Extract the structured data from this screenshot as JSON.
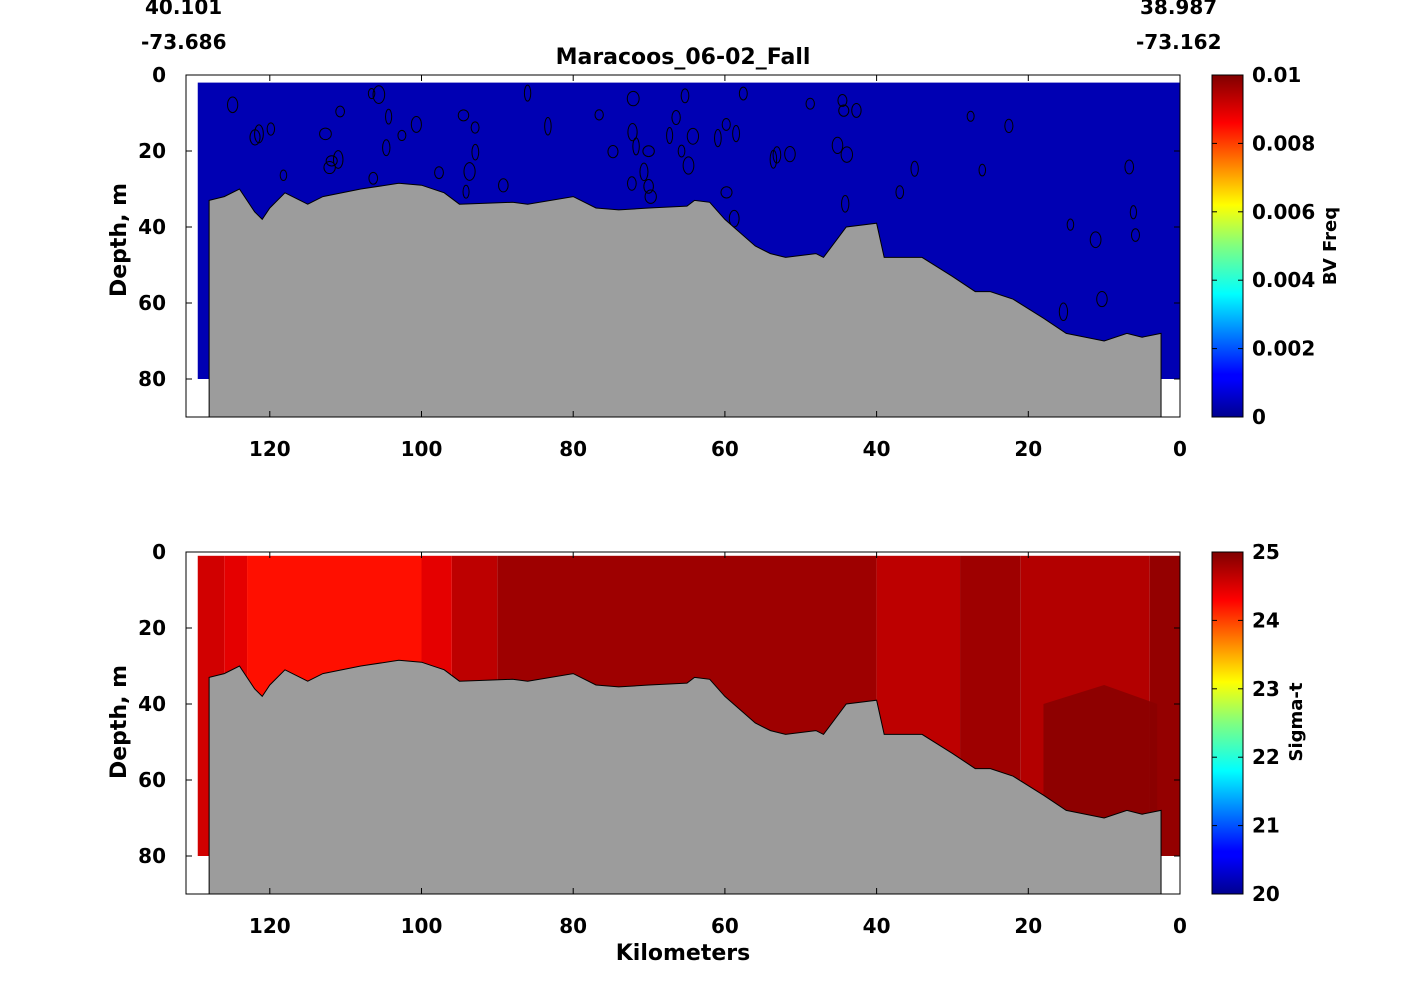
{
  "figure": {
    "title": "Maracoos_06-02_Fall",
    "start_lat": "40.101",
    "start_lon": "-73.686",
    "end_lat": "38.987",
    "end_lon": "-73.162"
  },
  "chart_data": [
    {
      "type": "heatmap",
      "variable": "BV Freq",
      "ylabel": "Depth, m",
      "xlabel": "",
      "x_ticks": [
        120,
        100,
        80,
        60,
        40,
        20,
        0
      ],
      "y_ticks": [
        0,
        20,
        40,
        60,
        80
      ],
      "xlim": [
        131,
        0
      ],
      "ylim": [
        0,
        90
      ],
      "y_inverted": true,
      "colorbar": {
        "label": "BV Freq",
        "ticks": [
          "0",
          "0.002",
          "0.004",
          "0.006",
          "0.008",
          "0.01"
        ],
        "range": [
          0,
          0.01
        ],
        "colormap": "jet"
      },
      "field_summary": "Values near 0 throughout the water column (dark blue), with scattered contour loops",
      "contours": true
    },
    {
      "type": "heatmap",
      "variable": "Sigma-t",
      "ylabel": "Depth, m",
      "xlabel": "Kilometers",
      "x_ticks": [
        120,
        100,
        80,
        60,
        40,
        20,
        0
      ],
      "y_ticks": [
        0,
        20,
        40,
        60,
        80
      ],
      "xlim": [
        131,
        0
      ],
      "ylim": [
        0,
        90
      ],
      "y_inverted": true,
      "colorbar": {
        "label": "Sigma-t",
        "ticks": [
          "20",
          "21",
          "22",
          "23",
          "24",
          "25"
        ],
        "range": [
          20,
          25
        ],
        "colormap": "jet"
      },
      "field_summary": "Approx. 24.3 nearshore (x 130-100 km) increasing to about 25 offshore and at depth",
      "contours": false
    }
  ],
  "section": {
    "water_extent_km": [
      129.5,
      0
    ],
    "bottom_profile": {
      "km": [
        128,
        126,
        124,
        122,
        121,
        120,
        118,
        115,
        113,
        108,
        103,
        100,
        97,
        95,
        88,
        86,
        80,
        77,
        74,
        70,
        65,
        64,
        62,
        60,
        56,
        54,
        52,
        48,
        47,
        44,
        40,
        39,
        34,
        30,
        27,
        25,
        22,
        18,
        15,
        10,
        7,
        5,
        2.5
      ],
      "depth": [
        33,
        32,
        30,
        36,
        38,
        35,
        31,
        34,
        32,
        30,
        28.5,
        29,
        31,
        34,
        33.5,
        34,
        32,
        35,
        35.5,
        35,
        34.5,
        33,
        33.5,
        38,
        45,
        47,
        48,
        47,
        48,
        40,
        39,
        48,
        48,
        53,
        57,
        57,
        59,
        64,
        68,
        70,
        68,
        69,
        68
      ]
    },
    "sigma_t_columns": [
      {
        "km_start": 129.5,
        "km_end": 126,
        "value": 24.6
      },
      {
        "km_start": 126,
        "km_end": 123,
        "value": 24.5
      },
      {
        "km_start": 123,
        "km_end": 100,
        "value": 24.3
      },
      {
        "km_start": 100,
        "km_end": 96,
        "value": 24.5
      },
      {
        "km_start": 96,
        "km_end": 90,
        "value": 24.7
      },
      {
        "km_start": 90,
        "km_end": 40,
        "value": 24.85
      },
      {
        "km_start": 40,
        "km_end": 29,
        "value": 24.7
      },
      {
        "km_start": 29,
        "km_end": 21,
        "value": 24.85
      },
      {
        "km_start": 21,
        "km_end": 4,
        "value": 24.75
      },
      {
        "km_start": 4,
        "km_end": 0,
        "value": 24.9
      }
    ],
    "sigma_t_deep_value": 24.95,
    "bv_value": 0.0005
  },
  "colors": {
    "terrain": "#9c9c9c",
    "background": "#ffffff"
  }
}
